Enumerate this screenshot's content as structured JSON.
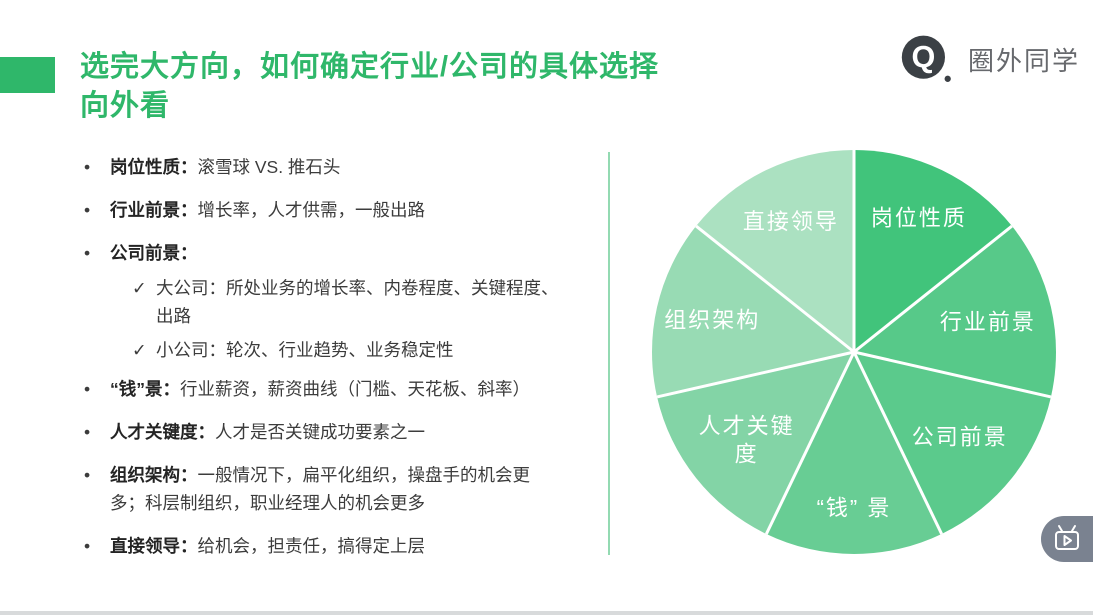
{
  "slide": {
    "title_line1": "选完大方向，如何确定行业/公司的具体选择",
    "title_line2": "向外看",
    "accent_color": "#2fb76a"
  },
  "logo": {
    "glyph": "Q",
    "text": "圈外同学",
    "badge_color": "#3b4045",
    "text_color": "#67696d"
  },
  "bullets": [
    {
      "marker": "•",
      "term": "岗位性质：",
      "bold_term": true,
      "indent": false,
      "lines": [
        "滚雪球 VS. 推石头"
      ]
    },
    {
      "marker": "•",
      "term": "行业前景：",
      "bold_term": true,
      "indent": false,
      "lines": [
        "增长率，人才供需，一般出路"
      ]
    },
    {
      "marker": "•",
      "term": "公司前景：",
      "bold_term": true,
      "indent": false,
      "lines": [
        ""
      ]
    },
    {
      "marker": "✓",
      "term": "大公司：",
      "bold_term": false,
      "indent": true,
      "lines": [
        "所处业务的增长率、内卷程度、关键程度、",
        "出路"
      ]
    },
    {
      "marker": "✓",
      "term": "小公司：",
      "bold_term": false,
      "indent": true,
      "lines": [
        "轮次、行业趋势、业务稳定性"
      ]
    },
    {
      "marker": "•",
      "term": "“钱”景：",
      "bold_term": true,
      "indent": false,
      "lines": [
        "行业薪资，薪资曲线（门槛、天花板、斜率）"
      ]
    },
    {
      "marker": "•",
      "term": "人才关键度：",
      "bold_term": true,
      "indent": false,
      "lines": [
        "人才是否关键成功要素之一"
      ]
    },
    {
      "marker": "•",
      "term": "组织架构：",
      "bold_term": true,
      "indent": false,
      "lines": [
        "一般情况下，扁平化组织，操盘手的机会更",
        "多；科层制组织，职业经理人的机会更多"
      ]
    },
    {
      "marker": "•",
      "term": "直接领导：",
      "bold_term": true,
      "indent": false,
      "lines": [
        "给机会，担责任，搞得定上层"
      ]
    }
  ],
  "chart_data": {
    "type": "pie",
    "title": "",
    "labels": [
      "岗位性质",
      "行业前景",
      "公司前景",
      "“钱” 景",
      "人才关键度",
      "组织架构",
      "直接领导"
    ],
    "label_lines": [
      [
        "岗位性质"
      ],
      [
        "行业前景"
      ],
      [
        "公司前景"
      ],
      [
        "“钱” 景"
      ],
      [
        "人才关键",
        "度"
      ],
      [
        "组织架构"
      ],
      [
        "直接领导"
      ]
    ],
    "values": [
      14.29,
      14.29,
      14.29,
      14.29,
      14.29,
      14.29,
      14.29
    ],
    "colors": [
      "#41c47b",
      "#57c989",
      "#5bca8c",
      "#68cd94",
      "#83d4a6",
      "#98dbb4",
      "#abe1c1"
    ],
    "start_angle": "top",
    "direction": "clockwise",
    "label_color": "#ffffff",
    "slice_divider_color": "#ffffff",
    "legend_position": "none"
  },
  "player_button": {
    "icon": "video-tv-icon"
  }
}
